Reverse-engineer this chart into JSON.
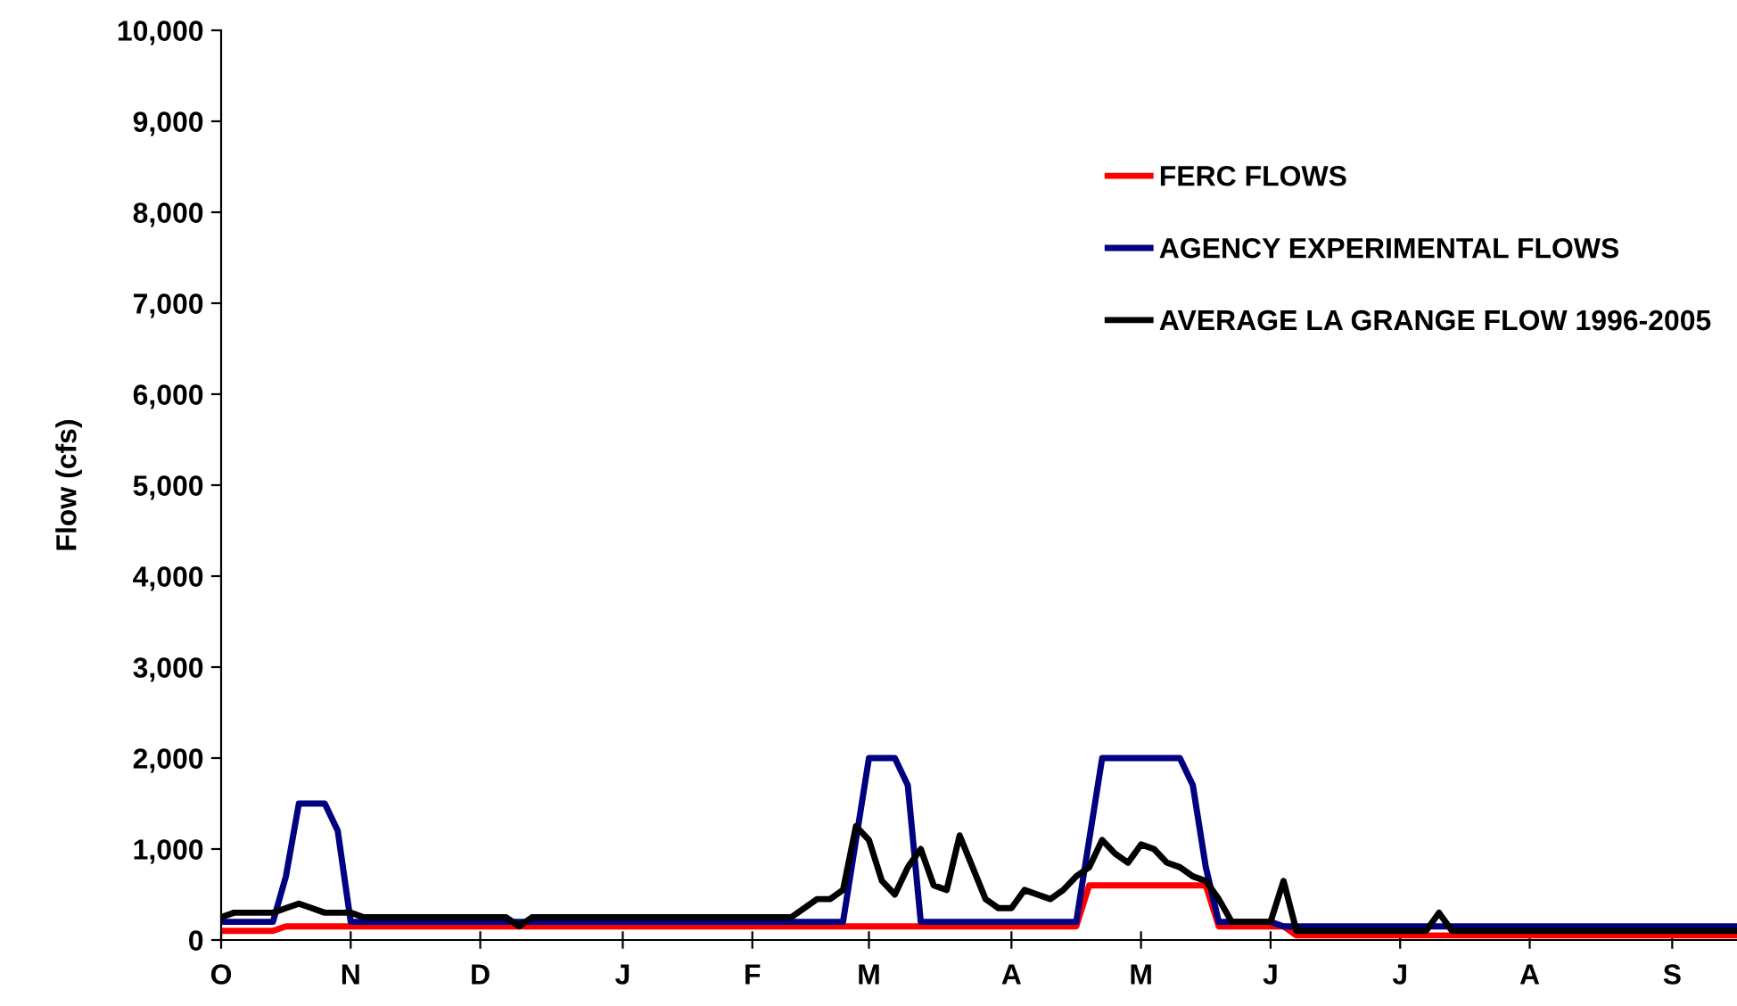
{
  "chart_data": {
    "type": "line",
    "ylabel": "Flow (cfs)",
    "categories": [
      "O",
      null,
      null,
      null,
      null,
      null,
      null,
      null,
      null,
      null,
      "N",
      null,
      null,
      null,
      null,
      null,
      null,
      null,
      null,
      null,
      "D",
      null,
      null,
      null,
      null,
      null,
      null,
      null,
      null,
      null,
      null,
      "J",
      null,
      null,
      null,
      null,
      null,
      null,
      null,
      null,
      null,
      "F",
      null,
      null,
      null,
      null,
      null,
      null,
      null,
      null,
      "M",
      null,
      null,
      null,
      null,
      null,
      null,
      null,
      null,
      null,
      null,
      "A",
      null,
      null,
      null,
      null,
      null,
      null,
      null,
      null,
      null,
      "M",
      null,
      null,
      null,
      null,
      null,
      null,
      null,
      null,
      null,
      "J",
      null,
      null,
      null,
      null,
      null,
      null,
      null,
      null,
      null,
      "J",
      null,
      null,
      null,
      null,
      null,
      null,
      null,
      null,
      null,
      "A",
      null,
      null,
      null,
      null,
      null,
      null,
      null,
      null,
      null,
      null,
      "S",
      null,
      null,
      null,
      null,
      null
    ],
    "ylim": [
      0,
      10000
    ],
    "yticks": [
      {
        "value": 0,
        "label": "0"
      },
      {
        "value": 1000,
        "label": "1,000"
      },
      {
        "value": 2000,
        "label": "2,000"
      },
      {
        "value": 3000,
        "label": "3,000"
      },
      {
        "value": 4000,
        "label": "4,000"
      },
      {
        "value": 5000,
        "label": "5,000"
      },
      {
        "value": 6000,
        "label": "6,000"
      },
      {
        "value": 7000,
        "label": "7,000"
      },
      {
        "value": 8000,
        "label": "8,000"
      },
      {
        "value": 9000,
        "label": "9,000"
      },
      {
        "value": 10000,
        "label": "10,000"
      }
    ],
    "grid": false,
    "legend": "top right",
    "marker": "none",
    "line_style": "solid",
    "series": [
      {
        "name": "FERC FLOWS",
        "color": "#ff0000",
        "values": [
          100,
          100,
          100,
          100,
          100,
          150,
          150,
          150,
          150,
          150,
          150,
          150,
          150,
          150,
          150,
          150,
          150,
          150,
          150,
          150,
          150,
          150,
          150,
          150,
          150,
          150,
          150,
          150,
          150,
          150,
          150,
          150,
          150,
          150,
          150,
          150,
          150,
          150,
          150,
          150,
          150,
          150,
          150,
          150,
          150,
          150,
          150,
          150,
          150,
          150,
          150,
          150,
          150,
          150,
          150,
          150,
          150,
          150,
          150,
          150,
          150,
          150,
          150,
          150,
          150,
          150,
          150,
          600,
          600,
          600,
          600,
          600,
          600,
          600,
          600,
          600,
          600,
          150,
          150,
          150,
          150,
          150,
          150,
          50,
          50,
          50,
          50,
          50,
          50,
          50,
          50,
          50,
          50,
          50,
          50,
          50,
          50,
          50,
          50,
          50,
          50,
          50,
          50,
          50,
          50,
          50,
          50,
          50,
          50,
          50,
          50,
          50,
          50,
          50,
          50,
          50,
          50,
          50
        ]
      },
      {
        "name": "AGENCY EXPERIMENTAL FLOWS",
        "color": "#000080",
        "values": [
          200,
          200,
          200,
          200,
          200,
          700,
          1500,
          1500,
          1500,
          1200,
          200,
          200,
          200,
          200,
          200,
          200,
          200,
          200,
          200,
          200,
          200,
          200,
          200,
          200,
          200,
          200,
          200,
          200,
          200,
          200,
          200,
          200,
          200,
          200,
          200,
          200,
          200,
          200,
          200,
          200,
          200,
          200,
          200,
          200,
          200,
          200,
          200,
          200,
          200,
          1100,
          2000,
          2000,
          2000,
          1700,
          200,
          200,
          200,
          200,
          200,
          200,
          200,
          200,
          200,
          200,
          200,
          200,
          200,
          1100,
          2000,
          2000,
          2000,
          2000,
          2000,
          2000,
          2000,
          1700,
          800,
          200,
          200,
          200,
          200,
          200,
          150,
          150,
          150,
          150,
          150,
          150,
          150,
          150,
          150,
          150,
          150,
          150,
          150,
          150,
          150,
          150,
          150,
          150,
          150,
          150,
          150,
          150,
          150,
          150,
          150,
          150,
          150,
          150,
          150,
          150,
          150,
          150,
          150,
          150,
          150,
          150
        ]
      },
      {
        "name": "AVERAGE LA GRANGE FLOW 1996-2005",
        "color": "#000000",
        "values": [
          250,
          300,
          300,
          300,
          300,
          350,
          400,
          350,
          300,
          300,
          300,
          250,
          250,
          250,
          250,
          250,
          250,
          250,
          250,
          250,
          250,
          250,
          250,
          150,
          250,
          250,
          250,
          250,
          250,
          250,
          250,
          250,
          250,
          250,
          250,
          250,
          250,
          250,
          250,
          250,
          250,
          250,
          250,
          250,
          250,
          350,
          450,
          450,
          550,
          1250,
          1100,
          650,
          500,
          800,
          1000,
          600,
          550,
          1150,
          800,
          450,
          350,
          350,
          550,
          500,
          450,
          550,
          700,
          800,
          1100,
          950,
          850,
          1050,
          1000,
          850,
          800,
          700,
          650,
          450,
          200,
          200,
          200,
          200,
          650,
          100,
          100,
          100,
          100,
          100,
          100,
          100,
          100,
          100,
          100,
          100,
          300,
          100,
          100,
          100,
          100,
          100,
          100,
          100,
          100,
          100,
          100,
          100,
          100,
          100,
          100,
          100,
          100,
          100,
          100,
          100,
          100,
          100,
          100,
          100
        ]
      }
    ]
  }
}
